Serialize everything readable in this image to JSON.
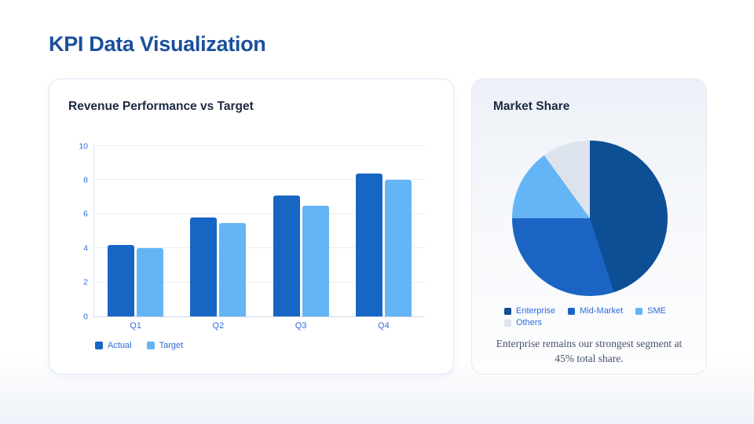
{
  "page": {
    "title": "KPI Data Visualization"
  },
  "revenue_card": {
    "title": "Revenue Performance vs Target"
  },
  "market_card": {
    "title": "Market Share",
    "caption": "Enterprise remains our strongest segment at 45% total share."
  },
  "colors": {
    "accent_title": "#1A4F9C",
    "axis_text": "#2E6BDB",
    "actual_bar": "#1766C4",
    "target_bar": "#64B5F6"
  },
  "chart_data": [
    {
      "type": "bar",
      "title": "Revenue Performance vs Target",
      "categories": [
        "Q1",
        "Q2",
        "Q3",
        "Q4"
      ],
      "series": [
        {
          "name": "Actual",
          "color": "#1766C4",
          "values": [
            4.2,
            5.8,
            7.1,
            8.4
          ]
        },
        {
          "name": "Target",
          "color": "#64B5F6",
          "values": [
            4.0,
            5.5,
            6.5,
            8.0
          ]
        }
      ],
      "xlabel": "",
      "ylabel": "",
      "ylim": [
        0,
        10
      ],
      "yticks": [
        0,
        2,
        4,
        6,
        8,
        10
      ],
      "grid": true,
      "legend_position": "bottom-left"
    },
    {
      "type": "pie",
      "title": "Market Share",
      "labels": [
        "Enterprise",
        "Mid-Market",
        "SME",
        "Others"
      ],
      "values": [
        45,
        30,
        15,
        10
      ],
      "colors": [
        "#0D4F94",
        "#1C64C4",
        "#64B5F6",
        "#DDE3EC"
      ],
      "start_angle_deg": 0,
      "direction": "clockwise",
      "legend_position": "bottom",
      "annotation": "Enterprise remains our strongest segment at 45% total share."
    }
  ]
}
